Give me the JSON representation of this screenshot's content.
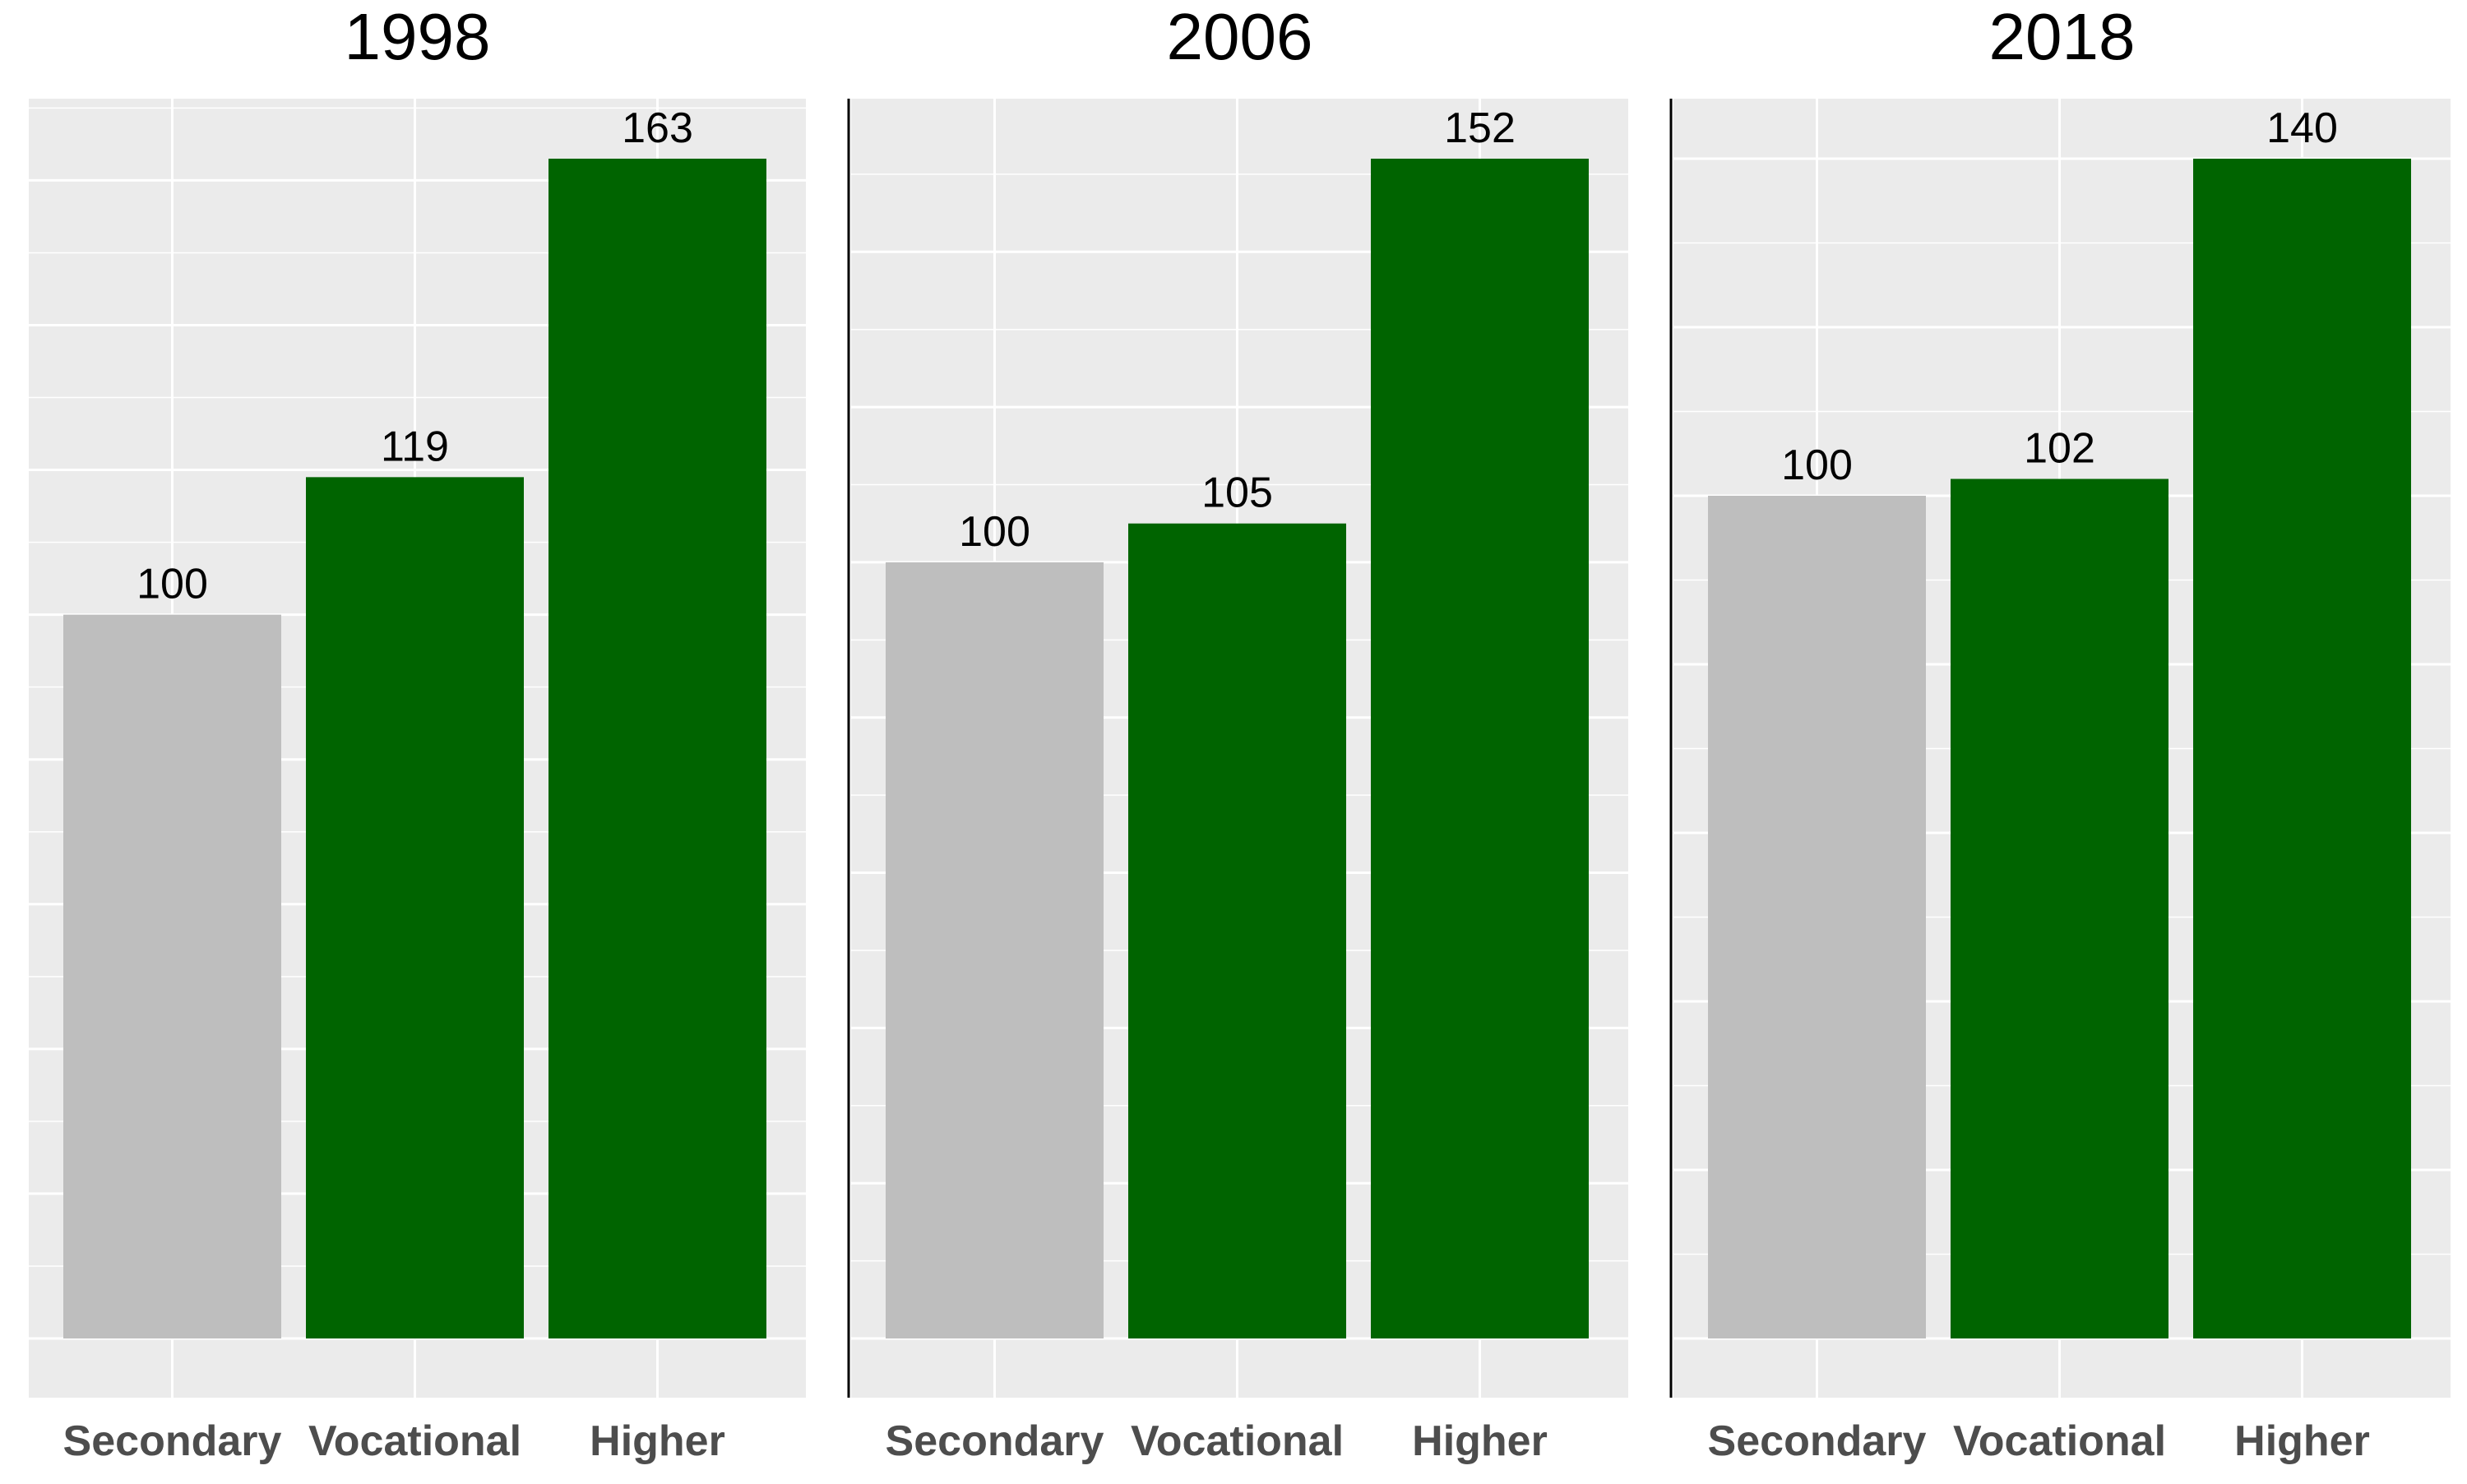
{
  "chart_data": [
    {
      "type": "bar",
      "title": "1998",
      "categories": [
        "Secondary",
        "Vocational",
        "Higher"
      ],
      "values": [
        100,
        119,
        163
      ],
      "data_labels": [
        "100",
        "119",
        "163"
      ],
      "bar_colors": [
        "#bebebe",
        "#006400",
        "#006400"
      ],
      "xlabel": "",
      "ylabel": "",
      "ylim": [
        0,
        171
      ],
      "grid": true,
      "legend": "none"
    },
    {
      "type": "bar",
      "title": "2006",
      "categories": [
        "Secondary",
        "Vocational",
        "Higher"
      ],
      "values": [
        100,
        105,
        152
      ],
      "data_labels": [
        "100",
        "105",
        "152"
      ],
      "bar_colors": [
        "#bebebe",
        "#006400",
        "#006400"
      ],
      "xlabel": "",
      "ylabel": "",
      "ylim": [
        0,
        159.6
      ],
      "grid": true,
      "legend": "none"
    },
    {
      "type": "bar",
      "title": "2018",
      "categories": [
        "Secondary",
        "Vocational",
        "Higher"
      ],
      "values": [
        100,
        102,
        140
      ],
      "data_labels": [
        "100",
        "102",
        "140"
      ],
      "bar_colors": [
        "#bebebe",
        "#006400",
        "#006400"
      ],
      "xlabel": "",
      "ylabel": "",
      "ylim": [
        0,
        147
      ],
      "grid": true,
      "legend": "none"
    }
  ],
  "colors": {
    "panel_background": "#ebebeb",
    "grid_line": "#ffffff",
    "title_text": "#000000",
    "tick_text": "#4d4d4d",
    "label_text": "#000000",
    "axis_line": "#000000"
  }
}
